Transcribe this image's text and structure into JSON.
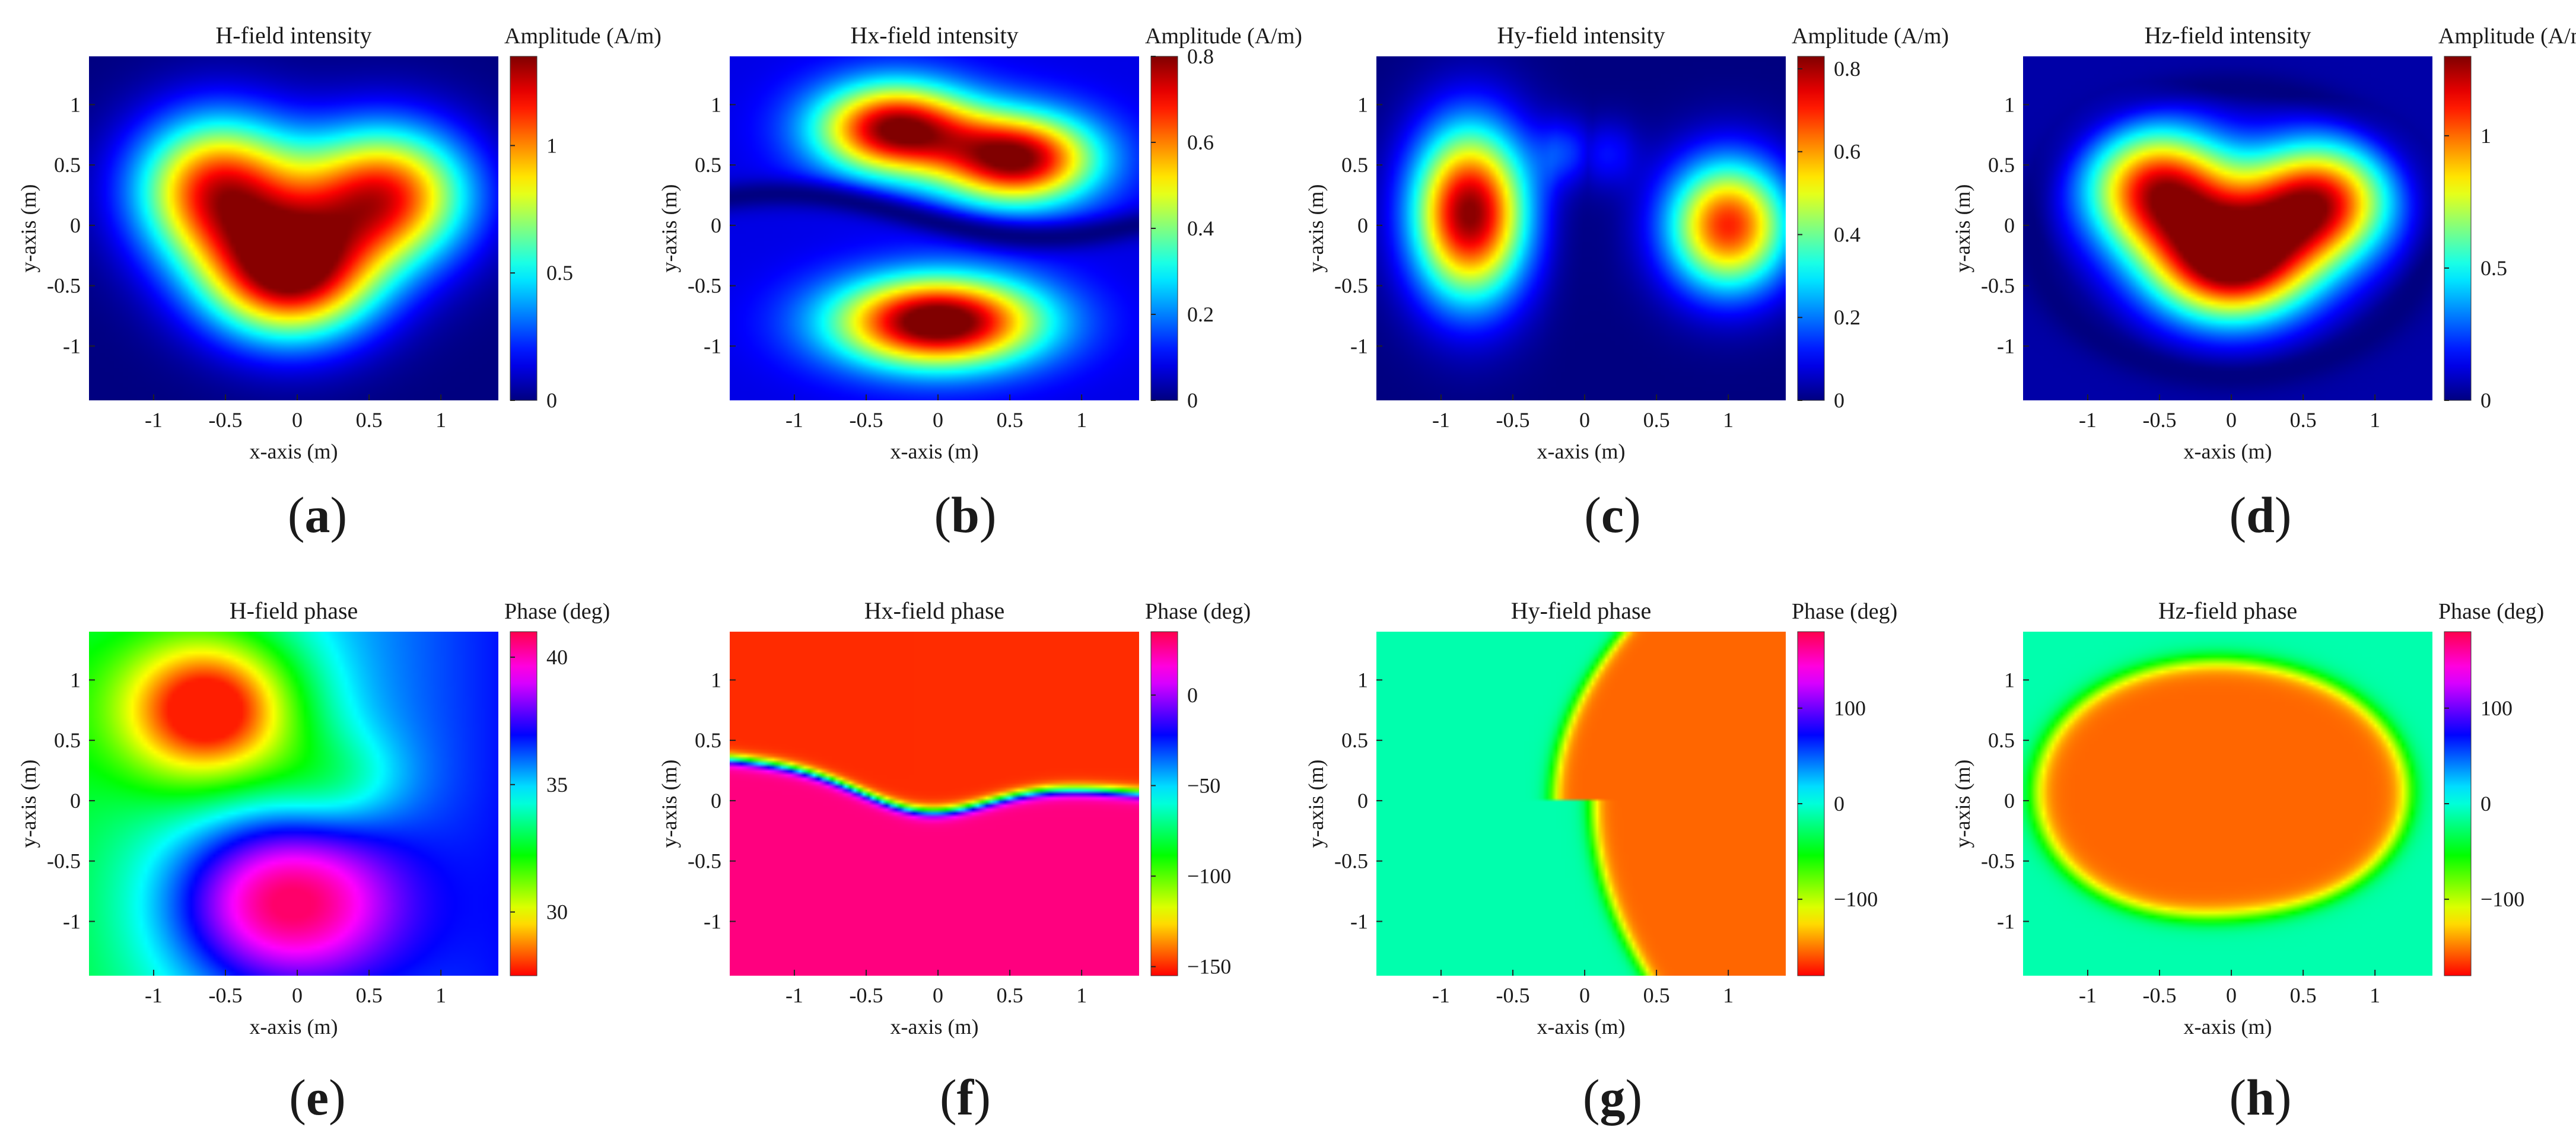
{
  "figure": {
    "panels": [
      {
        "id": "a",
        "caption": "a",
        "title": "H-field intensity",
        "cbar_label": "Amplitude (A/m)",
        "kind": "amplitude",
        "field": "H",
        "cmap": "jet",
        "cticks": [
          "0",
          "0.5",
          "1"
        ],
        "clim": [
          0,
          1.35
        ],
        "xlabel": "x-axis (m)",
        "ylabel": "y-axis (m)"
      },
      {
        "id": "b",
        "caption": "b",
        "title": "Hx-field intensity",
        "cbar_label": "Amplitude (A/m)",
        "kind": "amplitude",
        "field": "Hx",
        "cmap": "jet",
        "cticks": [
          "0",
          "0.2",
          "0.4",
          "0.6",
          "0.8"
        ],
        "clim": [
          0,
          0.8
        ],
        "xlabel": "x-axis (m)",
        "ylabel": "y-axis (m)"
      },
      {
        "id": "c",
        "caption": "c",
        "title": "Hy-field intensity",
        "cbar_label": "Amplitude (A/m)",
        "kind": "amplitude",
        "field": "Hy",
        "cmap": "jet",
        "cticks": [
          "0",
          "0.2",
          "0.4",
          "0.6",
          "0.8"
        ],
        "clim": [
          0,
          0.83
        ],
        "xlabel": "x-axis (m)",
        "ylabel": "y-axis (m)"
      },
      {
        "id": "d",
        "caption": "d",
        "title": "Hz-field intensity",
        "cbar_label": "Amplitude (A/m)",
        "kind": "amplitude",
        "field": "Hz",
        "cmap": "jet",
        "cticks": [
          "0",
          "0.5",
          "1"
        ],
        "clim": [
          0,
          1.3
        ],
        "xlabel": "x-axis (m)",
        "ylabel": "y-axis (m)"
      },
      {
        "id": "e",
        "caption": "e",
        "title": "H-field phase",
        "cbar_label": "Phase (deg)",
        "kind": "phase",
        "field": "H",
        "cmap": "hsv",
        "cticks": [
          "30",
          "35",
          "40"
        ],
        "clim": [
          27.5,
          41
        ],
        "xlabel": "x-axis (m)",
        "ylabel": "y-axis (m)"
      },
      {
        "id": "f",
        "caption": "f",
        "title": "Hx-field phase",
        "cbar_label": "Phase (deg)",
        "kind": "phase",
        "field": "Hx",
        "cmap": "hsv",
        "cticks": [
          "-150",
          "-100",
          "-50",
          "0"
        ],
        "clim": [
          -155,
          35
        ],
        "xlabel": "x-axis (m)",
        "ylabel": "y-axis (m)"
      },
      {
        "id": "g",
        "caption": "g",
        "title": "Hy-field phase",
        "cbar_label": "Phase (deg)",
        "kind": "phase",
        "field": "Hy",
        "cmap": "hsv",
        "cticks": [
          "-100",
          "0",
          "100"
        ],
        "clim": [
          -180,
          180
        ],
        "xlabel": "x-axis (m)",
        "ylabel": "y-axis (m)"
      },
      {
        "id": "h",
        "caption": "h",
        "title": "Hz-field phase",
        "cbar_label": "Phase (deg)",
        "kind": "phase",
        "field": "Hz",
        "cmap": "hsv",
        "cticks": [
          "-100",
          "0",
          "100"
        ],
        "clim": [
          -180,
          180
        ],
        "xlabel": "x-axis (m)",
        "ylabel": "y-axis (m)"
      }
    ]
  },
  "chart_data": [
    {
      "type": "heatmap",
      "panel": "a",
      "title": "H-field intensity",
      "xlabel": "x-axis (m)",
      "ylabel": "y-axis (m)",
      "xlim": [
        -1.45,
        1.4
      ],
      "ylim": [
        -1.45,
        1.4
      ],
      "xticks": [
        -1,
        -0.5,
        0,
        0.5,
        1
      ],
      "yticks": [
        -1,
        -0.5,
        0,
        0.5,
        1
      ],
      "colorbar": {
        "label": "Amplitude (A/m)",
        "ticks": [
          0,
          0.5,
          1
        ],
        "range": [
          0,
          1.35
        ],
        "colormap": "jet"
      },
      "peaks": [
        {
          "x": -0.05,
          "y": -0.4,
          "value": 1.32
        },
        {
          "x": -0.5,
          "y": 0.3,
          "value": 1.15
        },
        {
          "x": 0.6,
          "y": 0.2,
          "value": 1.15
        }
      ]
    },
    {
      "type": "heatmap",
      "panel": "b",
      "title": "Hx-field intensity",
      "xlabel": "x-axis (m)",
      "ylabel": "y-axis (m)",
      "xlim": [
        -1.45,
        1.4
      ],
      "ylim": [
        -1.45,
        1.4
      ],
      "xticks": [
        -1,
        -0.5,
        0,
        0.5,
        1
      ],
      "yticks": [
        -1,
        -0.5,
        0,
        0.5,
        1
      ],
      "colorbar": {
        "label": "Amplitude (A/m)",
        "ticks": [
          0,
          0.2,
          0.4,
          0.6,
          0.8
        ],
        "range": [
          0,
          0.8
        ],
        "colormap": "jet"
      },
      "peaks": [
        {
          "x": 0,
          "y": -0.8,
          "value": 0.8
        },
        {
          "x": -0.3,
          "y": 0.8,
          "value": 0.72
        },
        {
          "x": 0.55,
          "y": 0.55,
          "value": 0.72
        }
      ]
    },
    {
      "type": "heatmap",
      "panel": "c",
      "title": "Hy-field intensity",
      "xlabel": "x-axis (m)",
      "ylabel": "y-axis (m)",
      "xlim": [
        -1.45,
        1.4
      ],
      "ylim": [
        -1.45,
        1.4
      ],
      "xticks": [
        -1,
        -0.5,
        0,
        0.5,
        1
      ],
      "yticks": [
        -1,
        -0.5,
        0,
        0.5,
        1
      ],
      "colorbar": {
        "label": "Amplitude (A/m)",
        "ticks": [
          0,
          0.2,
          0.4,
          0.6,
          0.8
        ],
        "range": [
          0,
          0.83
        ],
        "colormap": "jet"
      },
      "peaks": [
        {
          "x": -0.8,
          "y": 0.1,
          "value": 0.83
        },
        {
          "x": 1,
          "y": 0,
          "value": 0.7
        }
      ]
    },
    {
      "type": "heatmap",
      "panel": "d",
      "title": "Hz-field intensity",
      "xlabel": "x-axis (m)",
      "ylabel": "y-axis (m)",
      "xlim": [
        -1.45,
        1.4
      ],
      "ylim": [
        -1.45,
        1.4
      ],
      "xticks": [
        -1,
        -0.5,
        0,
        0.5,
        1
      ],
      "yticks": [
        -1,
        -0.5,
        0,
        0.5,
        1
      ],
      "colorbar": {
        "label": "Amplitude (A/m)",
        "ticks": [
          0,
          0.5,
          1
        ],
        "range": [
          0,
          1.3
        ],
        "colormap": "jet"
      },
      "peaks": [
        {
          "x": 0,
          "y": -0.3,
          "value": 1.28
        },
        {
          "x": -0.5,
          "y": 0.3,
          "value": 1.1
        },
        {
          "x": 0.6,
          "y": 0.2,
          "value": 1.1
        }
      ]
    },
    {
      "type": "heatmap",
      "panel": "e",
      "title": "H-field phase",
      "xlabel": "x-axis (m)",
      "ylabel": "y-axis (m)",
      "xlim": [
        -1.45,
        1.4
      ],
      "ylim": [
        -1.45,
        1.4
      ],
      "xticks": [
        -1,
        -0.5,
        0,
        0.5,
        1
      ],
      "yticks": [
        -1,
        -0.5,
        0,
        0.5,
        1
      ],
      "colorbar": {
        "label": "Phase (deg)",
        "ticks": [
          30,
          35,
          40
        ],
        "range": [
          27.5,
          41
        ],
        "colormap": "hsv"
      },
      "features": [
        {
          "x": -0.6,
          "y": 0.8,
          "value": 28
        },
        {
          "x": -0.1,
          "y": -0.8,
          "value": 40.5
        }
      ]
    },
    {
      "type": "heatmap",
      "panel": "f",
      "title": "Hx-field phase",
      "xlabel": "x-axis (m)",
      "ylabel": "y-axis (m)",
      "xlim": [
        -1.45,
        1.4
      ],
      "ylim": [
        -1.45,
        1.4
      ],
      "xticks": [
        -1,
        -0.5,
        0,
        0.5,
        1
      ],
      "yticks": [
        -1,
        -0.5,
        0,
        0.5,
        1
      ],
      "colorbar": {
        "label": "Phase (deg)",
        "ticks": [
          -150,
          -100,
          -50,
          0
        ],
        "range": [
          -155,
          35
        ],
        "colormap": "hsv"
      },
      "regions": [
        {
          "name": "upper",
          "value": -150
        },
        {
          "name": "lower",
          "value": 28
        }
      ]
    },
    {
      "type": "heatmap",
      "panel": "g",
      "title": "Hy-field phase",
      "xlabel": "x-axis (m)",
      "ylabel": "y-axis (m)",
      "xlim": [
        -1.45,
        1.4
      ],
      "ylim": [
        -1.45,
        1.4
      ],
      "xticks": [
        -1,
        -0.5,
        0,
        0.5,
        1
      ],
      "yticks": [
        -1,
        -0.5,
        0,
        0.5,
        1
      ],
      "colorbar": {
        "label": "Phase (deg)",
        "ticks": [
          -100,
          0,
          100
        ],
        "range": [
          -180,
          180
        ],
        "colormap": "hsv"
      },
      "regions": [
        {
          "name": "left",
          "value": -10
        },
        {
          "name": "right",
          "value": -155
        }
      ]
    },
    {
      "type": "heatmap",
      "panel": "h",
      "title": "Hz-field phase",
      "xlabel": "x-axis (m)",
      "ylabel": "y-axis (m)",
      "xlim": [
        -1.45,
        1.4
      ],
      "ylim": [
        -1.45,
        1.4
      ],
      "xticks": [
        -1,
        -0.5,
        0,
        0.5,
        1
      ],
      "yticks": [
        -1,
        -0.5,
        0,
        0.5,
        1
      ],
      "colorbar": {
        "label": "Phase (deg)",
        "ticks": [
          -100,
          0,
          100
        ],
        "range": [
          -180,
          180
        ],
        "colormap": "hsv"
      },
      "regions": [
        {
          "name": "outside",
          "value": -10
        },
        {
          "name": "inside",
          "value": -155
        }
      ]
    }
  ]
}
